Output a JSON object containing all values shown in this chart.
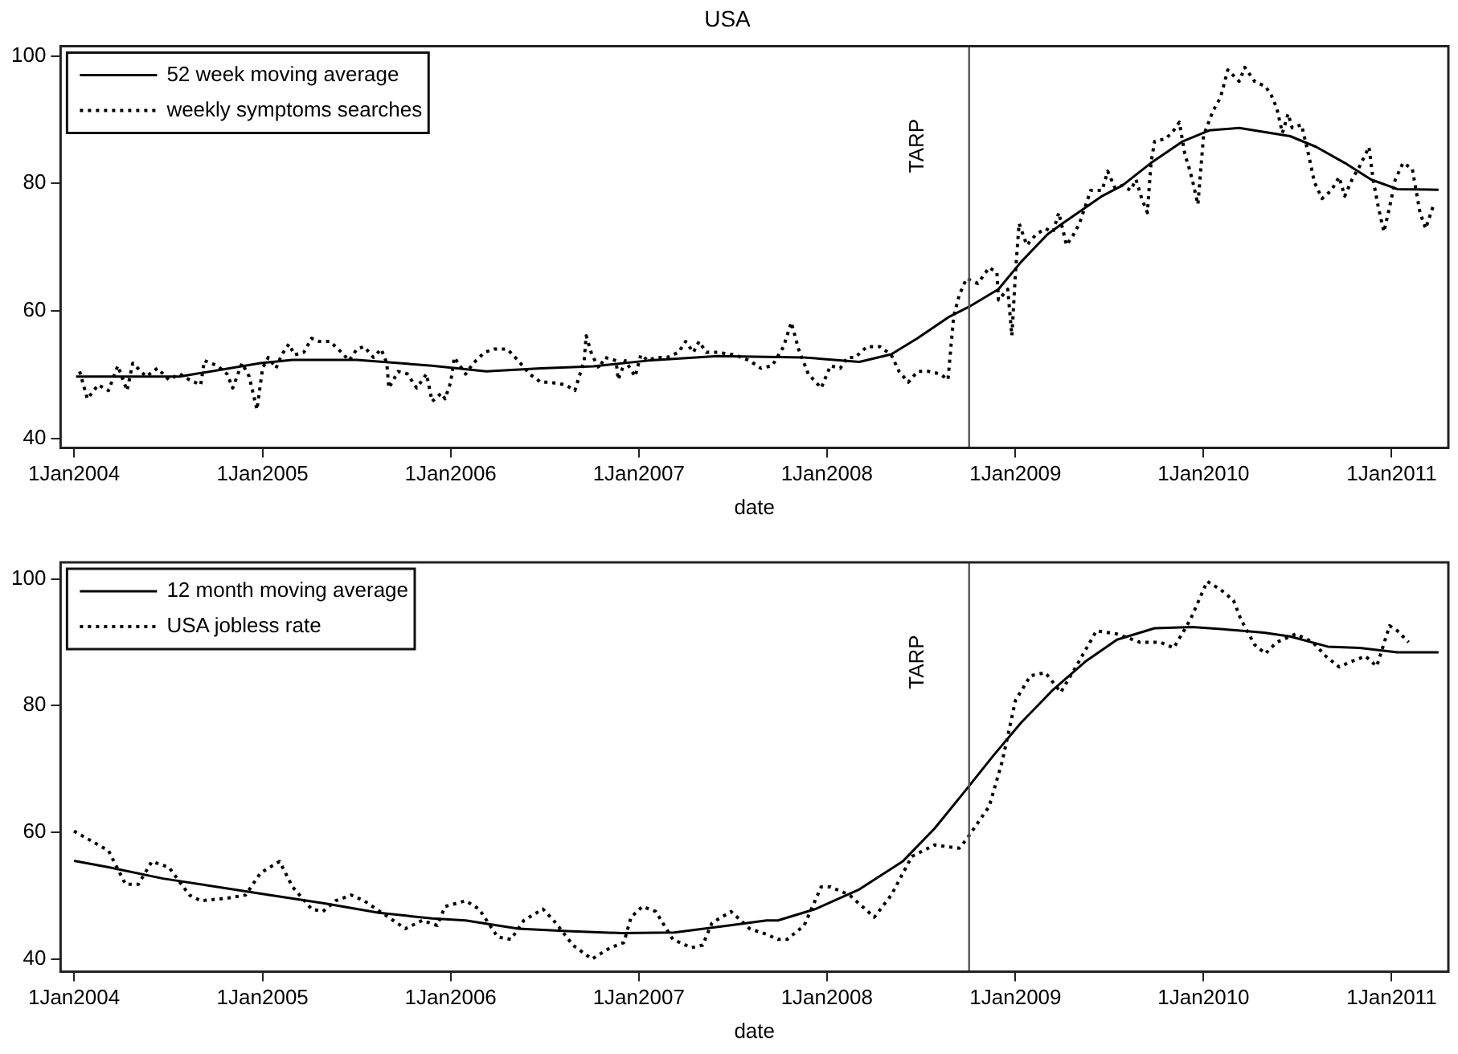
{
  "chart_data": [
    {
      "type": "line",
      "title": "USA",
      "xlabel": "date",
      "legend": "top left",
      "xlim": [
        "2003-12-06",
        "2011-04-21"
      ],
      "ylim": [
        38.5,
        101.5
      ],
      "xticks": [
        {
          "value": "2004-01-01",
          "label": "1Jan2004"
        },
        {
          "value": "2005-01-01",
          "label": "1Jan2005"
        },
        {
          "value": "2006-01-01",
          "label": "1Jan2006"
        },
        {
          "value": "2007-01-01",
          "label": "1Jan2007"
        },
        {
          "value": "2008-01-01",
          "label": "1Jan2008"
        },
        {
          "value": "2009-01-01",
          "label": "1Jan2009"
        },
        {
          "value": "2010-01-01",
          "label": "1Jan2010"
        },
        {
          "value": "2011-01-01",
          "label": "1Jan2011"
        }
      ],
      "yticks": [
        40,
        60,
        80,
        100
      ],
      "ref_lines": [
        {
          "axis": "x",
          "value": "2008-10-03",
          "label": "TARP",
          "color": "#555555"
        }
      ],
      "series": [
        {
          "name": "52 week moving average",
          "color": "#000000",
          "line_style": "solid",
          "x": [
            "2004-01-05",
            "2004-07-24",
            "2004-12-28",
            "2005-02-28",
            "2005-07-03",
            "2005-11-26",
            "2006-03-11",
            "2006-06-25",
            "2006-10-05",
            "2007-01-19",
            "2007-06-03",
            "2007-11-18",
            "2008-03-04",
            "2008-05-05",
            "2008-06-25",
            "2008-08-26",
            "2008-10-02",
            "2008-11-29",
            "2009-01-12",
            "2009-03-04",
            "2009-04-02",
            "2009-06-18",
            "2009-07-28",
            "2009-09-21",
            "2009-11-22",
            "2010-01-12",
            "2010-03-11",
            "2010-06-18",
            "2010-08-08",
            "2010-10-02",
            "2010-11-22",
            "2011-01-12",
            "2011-04-02"
          ],
          "values": [
            49.7,
            49.7,
            51.8,
            52.3,
            52.3,
            51.4,
            50.5,
            51.0,
            51.3,
            52.2,
            52.9,
            52.7,
            52.0,
            53.2,
            55.7,
            59.1,
            60.6,
            63.4,
            67.7,
            72.0,
            73.7,
            78.0,
            79.7,
            83.2,
            86.6,
            88.3,
            88.7,
            87.4,
            85.7,
            83.2,
            80.6,
            79.1,
            79.0
          ]
        },
        {
          "name": "weekly symptoms searches",
          "color": "#000000",
          "line_style": "dotted",
          "x": [
            "2004-01-12",
            "2004-01-27",
            "2004-02-17",
            "2004-03-08",
            "2004-03-26",
            "2004-04-13",
            "2004-04-24",
            "2004-05-20",
            "2004-06-11",
            "2004-07-03",
            "2004-07-24",
            "2004-08-12",
            "2004-09-03",
            "2004-09-10",
            "2004-10-05",
            "2004-10-24",
            "2004-11-04",
            "2004-11-22",
            "2004-12-06",
            "2004-12-21",
            "2005-01-01",
            "2005-01-12",
            "2005-01-27",
            "2005-02-07",
            "2005-02-21",
            "2005-03-04",
            "2005-03-22",
            "2005-04-06",
            "2005-04-21",
            "2005-05-12",
            "2005-06-03",
            "2005-06-18",
            "2005-07-03",
            "2005-07-17",
            "2005-08-04",
            "2005-08-19",
            "2005-08-30",
            "2005-09-03",
            "2005-09-21",
            "2005-10-09",
            "2005-10-27",
            "2005-11-15",
            "2005-11-26",
            "2005-12-14",
            "2005-12-21",
            "2006-01-01",
            "2006-01-08",
            "2006-01-30",
            "2006-02-14",
            "2006-03-08",
            "2006-03-26",
            "2006-04-21",
            "2006-05-12",
            "2006-06-03",
            "2006-06-25",
            "2006-07-13",
            "2006-08-12",
            "2006-08-30",
            "2006-09-17",
            "2006-09-21",
            "2006-10-02",
            "2006-10-16",
            "2006-10-27",
            "2006-11-18",
            "2006-11-22",
            "2006-12-06",
            "2006-12-25",
            "2007-01-05",
            "2007-01-19",
            "2007-02-03",
            "2007-02-25",
            "2007-03-19",
            "2007-04-02",
            "2007-04-17",
            "2007-04-28",
            "2007-05-12",
            "2007-06-03",
            "2007-07-06",
            "2007-08-04",
            "2007-08-26",
            "2007-09-17",
            "2007-10-09",
            "2007-10-24",
            "2007-11-07",
            "2007-11-26",
            "2007-12-21",
            "2008-01-08",
            "2008-01-27",
            "2008-02-10",
            "2008-02-25",
            "2008-03-19",
            "2008-04-13",
            "2008-05-05",
            "2008-05-20",
            "2008-06-07",
            "2008-06-25",
            "2008-07-17",
            "2008-08-08",
            "2008-08-23",
            "2008-09-03",
            "2008-09-14",
            "2008-09-28",
            "2008-10-20",
            "2008-11-11",
            "2008-11-26",
            "2008-11-29",
            "2008-12-17",
            "2008-12-25",
            "2009-01-01",
            "2009-01-08",
            "2009-01-23",
            "2009-02-10",
            "2009-02-28",
            "2009-03-15",
            "2009-03-26",
            "2009-04-10",
            "2009-04-24",
            "2009-05-05",
            "2009-05-27",
            "2009-06-18",
            "2009-06-29",
            "2009-07-13",
            "2009-07-28",
            "2009-08-12",
            "2009-08-23",
            "2009-09-03",
            "2009-09-14",
            "2009-09-21",
            "2009-09-28",
            "2009-10-20",
            "2009-11-04",
            "2009-11-15",
            "2009-11-26",
            "2009-12-03",
            "2009-12-10",
            "2009-12-21",
            "2010-01-01",
            "2010-01-19",
            "2010-02-03",
            "2010-02-17",
            "2010-03-11",
            "2010-03-22",
            "2010-04-10",
            "2010-05-01",
            "2010-05-12",
            "2010-05-23",
            "2010-06-03",
            "2010-06-14",
            "2010-06-22",
            "2010-07-10",
            "2010-07-24",
            "2010-08-04",
            "2010-08-19",
            "2010-09-06",
            "2010-09-21",
            "2010-10-02",
            "2010-10-16",
            "2010-10-31",
            "2010-11-18",
            "2010-11-26",
            "2010-12-06",
            "2010-12-17",
            "2010-12-28",
            "2011-01-08",
            "2011-01-23",
            "2011-02-10",
            "2011-02-25",
            "2011-03-08",
            "2011-03-22"
          ],
          "values": [
            50.5,
            46.2,
            48.4,
            47.5,
            51.4,
            47.5,
            51.8,
            49.7,
            51.0,
            49.2,
            50.1,
            49.2,
            48.4,
            52.2,
            51.4,
            50.1,
            47.9,
            51.8,
            49.7,
            44.5,
            51.0,
            52.7,
            51.0,
            53.1,
            54.8,
            53.1,
            53.5,
            55.7,
            55.2,
            55.2,
            53.5,
            52.2,
            54.0,
            54.4,
            52.7,
            54.0,
            51.8,
            47.9,
            50.5,
            50.1,
            47.9,
            50.1,
            45.8,
            47.1,
            46.2,
            48.8,
            52.7,
            50.1,
            51.8,
            53.5,
            54.0,
            54.0,
            52.2,
            50.1,
            48.8,
            48.8,
            48.4,
            47.5,
            52.2,
            56.1,
            53.1,
            51.0,
            52.7,
            52.2,
            49.2,
            52.2,
            49.7,
            53.1,
            52.2,
            52.7,
            52.7,
            53.5,
            55.2,
            53.5,
            55.2,
            53.5,
            53.5,
            53.1,
            52.2,
            51.0,
            51.4,
            54.4,
            58.2,
            54.0,
            50.1,
            47.9,
            51.4,
            51.0,
            52.7,
            52.7,
            54.4,
            54.4,
            53.1,
            50.5,
            48.8,
            50.5,
            50.5,
            50.1,
            49.2,
            59.1,
            62.5,
            65.1,
            64.3,
            66.8,
            66.0,
            61.7,
            63.4,
            56.1,
            66.0,
            73.7,
            70.3,
            72.0,
            72.9,
            72.4,
            75.4,
            70.3,
            72.0,
            73.7,
            78.9,
            78.9,
            81.9,
            79.3,
            79.7,
            78.9,
            80.6,
            77.6,
            75.4,
            83.2,
            86.6,
            87.0,
            88.3,
            89.6,
            84.4,
            82.7,
            80.6,
            76.7,
            87.5,
            91.3,
            93.5,
            97.8,
            96.0,
            98.2,
            96.0,
            95.2,
            93.9,
            91.8,
            87.9,
            90.9,
            88.7,
            89.2,
            84.4,
            80.2,
            77.6,
            78.9,
            81.0,
            78.0,
            80.6,
            82.7,
            85.7,
            80.6,
            76.3,
            72.4,
            76.3,
            80.6,
            83.2,
            82.3,
            75.4,
            72.9,
            76.3
          ]
        }
      ]
    },
    {
      "type": "line",
      "xlabel": "date",
      "legend": "top left",
      "xlim": [
        "2003-12-06",
        "2011-04-21"
      ],
      "ylim": [
        38,
        102.6
      ],
      "xticks": [
        {
          "value": "2004-01-01",
          "label": "1Jan2004"
        },
        {
          "value": "2005-01-01",
          "label": "1Jan2005"
        },
        {
          "value": "2006-01-01",
          "label": "1Jan2006"
        },
        {
          "value": "2007-01-01",
          "label": "1Jan2007"
        },
        {
          "value": "2008-01-01",
          "label": "1Jan2008"
        },
        {
          "value": "2009-01-01",
          "label": "1Jan2009"
        },
        {
          "value": "2010-01-01",
          "label": "1Jan2010"
        },
        {
          "value": "2011-01-01",
          "label": "1Jan2011"
        }
      ],
      "yticks": [
        40,
        60,
        80,
        100
      ],
      "ref_lines": [
        {
          "axis": "x",
          "value": "2008-10-03",
          "label": "TARP",
          "color": "#555555"
        }
      ],
      "series": [
        {
          "name": "12 month moving average",
          "color": "#000000",
          "line_style": "solid",
          "x": [
            "2004-01-01",
            "2004-03-08",
            "2004-06-22",
            "2004-10-05",
            "2005-01-16",
            "2005-05-01",
            "2005-08-15",
            "2005-11-26",
            "2006-01-30",
            "2006-05-12",
            "2006-08-15",
            "2006-11-29",
            "2007-03-11",
            "2007-06-25",
            "2007-09-06",
            "2007-09-28",
            "2007-12-10",
            "2008-03-04",
            "2008-05-27",
            "2008-07-28",
            "2008-09-28",
            "2008-11-18",
            "2009-01-12",
            "2009-03-15",
            "2009-05-16",
            "2009-07-17",
            "2009-09-28",
            "2009-12-10",
            "2010-03-04",
            "2010-04-28",
            "2010-06-18",
            "2010-08-30",
            "2010-10-31",
            "2011-01-12",
            "2011-04-02"
          ],
          "values": [
            55.5,
            54.5,
            52.7,
            51.4,
            50.1,
            48.8,
            47.3,
            46.4,
            46.1,
            44.8,
            44.4,
            44.1,
            44.2,
            45.3,
            46.1,
            46.1,
            47.9,
            51.0,
            55.4,
            60.6,
            66.8,
            72.0,
            77.3,
            82.5,
            86.9,
            90.4,
            92.2,
            92.4,
            91.9,
            91.5,
            90.9,
            89.3,
            89.1,
            88.4,
            88.4
          ]
        },
        {
          "name": "USA jobless rate",
          "color": "#000000",
          "line_style": "dotted",
          "x": [
            "2004-01-01",
            "2004-03-08",
            "2004-04-10",
            "2004-05-05",
            "2004-05-31",
            "2004-07-03",
            "2004-08-12",
            "2004-09-03",
            "2004-10-24",
            "2004-11-29",
            "2004-12-28",
            "2005-02-03",
            "2005-02-28",
            "2005-04-06",
            "2005-04-28",
            "2005-05-23",
            "2005-06-22",
            "2005-07-17",
            "2005-08-26",
            "2005-10-05",
            "2005-11-07",
            "2005-12-06",
            "2005-12-21",
            "2006-01-30",
            "2006-02-25",
            "2006-04-02",
            "2006-04-28",
            "2006-05-23",
            "2006-06-29",
            "2006-07-24",
            "2006-08-26",
            "2006-10-02",
            "2006-11-07",
            "2006-12-03",
            "2006-12-17",
            "2007-01-08",
            "2007-02-03",
            "2007-03-08",
            "2007-04-13",
            "2007-05-05",
            "2007-05-23",
            "2007-06-29",
            "2007-08-04",
            "2007-09-06",
            "2007-09-28",
            "2007-10-16",
            "2007-11-18",
            "2007-12-21",
            "2008-01-08",
            "2008-02-14",
            "2008-04-02",
            "2008-05-05",
            "2008-06-14",
            "2008-07-28",
            "2008-09-14",
            "2008-09-28",
            "2008-11-11",
            "2008-12-06",
            "2009-01-01",
            "2009-01-30",
            "2009-02-28",
            "2009-03-30",
            "2009-05-01",
            "2009-06-07",
            "2009-07-17",
            "2009-08-30",
            "2009-10-09",
            "2009-11-04",
            "2009-12-06",
            "2010-01-08",
            "2010-02-03",
            "2010-02-28",
            "2010-03-15",
            "2010-04-10",
            "2010-05-01",
            "2010-05-23",
            "2010-06-29",
            "2010-08-01",
            "2010-08-26",
            "2010-09-21",
            "2010-10-13",
            "2010-11-11",
            "2010-12-03",
            "2010-12-28",
            "2011-01-12",
            "2011-02-03"
          ],
          "values": [
            60.2,
            57.1,
            51.8,
            51.8,
            55.4,
            54.5,
            50.1,
            49.2,
            49.6,
            50.1,
            53.6,
            55.4,
            51.4,
            47.9,
            47.5,
            49.2,
            50.1,
            49.2,
            47.0,
            44.8,
            46.1,
            45.3,
            48.3,
            49.2,
            47.9,
            43.5,
            43.1,
            46.1,
            47.9,
            45.7,
            42.2,
            40.0,
            41.8,
            42.6,
            46.6,
            48.3,
            47.5,
            43.1,
            41.8,
            42.2,
            45.7,
            47.5,
            44.8,
            43.9,
            43.1,
            43.1,
            45.3,
            51.4,
            51.4,
            50.1,
            46.6,
            50.1,
            56.2,
            58.0,
            57.5,
            58.9,
            64.1,
            71.1,
            80.8,
            84.7,
            85.2,
            82.1,
            86.5,
            91.8,
            91.3,
            90.0,
            90.0,
            89.1,
            93.5,
            99.6,
            98.3,
            96.6,
            93.5,
            89.6,
            88.2,
            90.0,
            91.3,
            90.0,
            87.8,
            86.1,
            86.9,
            87.8,
            86.2,
            92.6,
            91.8,
            90.0
          ]
        }
      ]
    }
  ]
}
